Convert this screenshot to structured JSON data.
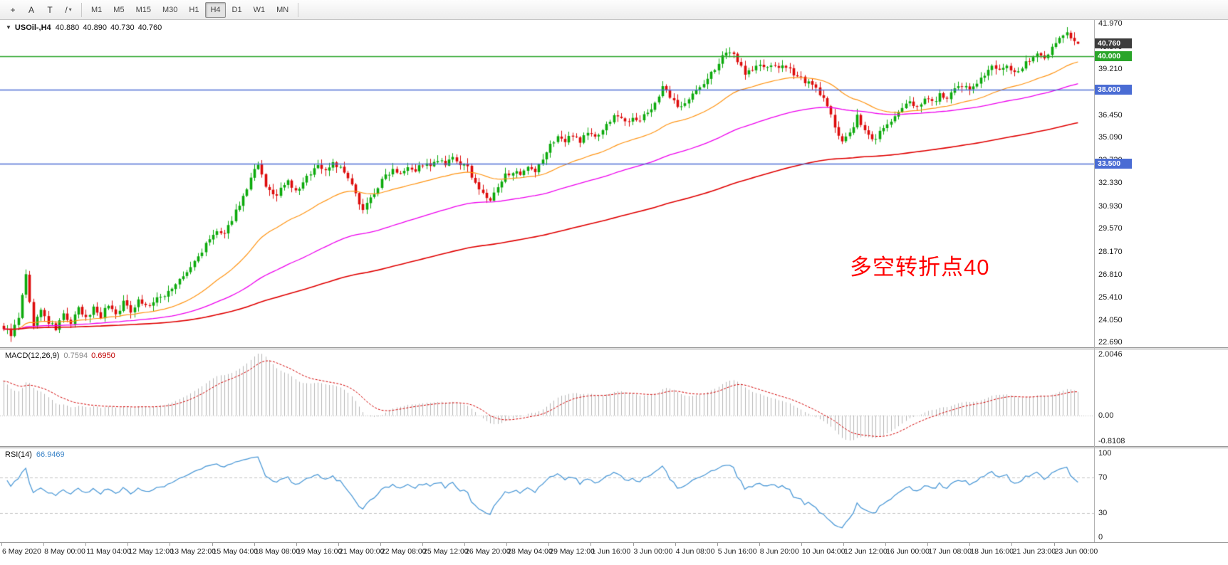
{
  "window": {
    "background": "#ffffff"
  },
  "toolbar": {
    "buttons": [
      {
        "name": "crosshair",
        "glyph": "+"
      },
      {
        "name": "text-annotation",
        "glyph": "A"
      },
      {
        "name": "text-box",
        "glyph": "T"
      },
      {
        "name": "draw-line",
        "glyph": "/",
        "caret": "▾"
      }
    ],
    "timeframes": [
      "M1",
      "M5",
      "M15",
      "M30",
      "H1",
      "H4",
      "D1",
      "W1",
      "MN"
    ],
    "active_timeframe": "H4"
  },
  "chart": {
    "title": {
      "dropdown_glyph": "▼",
      "symbol_tf": "USOil-,H4",
      "open": "40.880",
      "high": "40.890",
      "low": "40.730",
      "close": "40.760"
    },
    "annotation": {
      "text": "多空转折点40",
      "color": "#ff0000"
    }
  },
  "chart_data": {
    "type": "candlestick",
    "symbol": "USOil-",
    "timeframe": "H4",
    "bars": 288,
    "seed": 9,
    "noise": 0.17,
    "wick": 0.32,
    "y_range": [
      22.4,
      42.2
    ],
    "price_ticks": [
      41.97,
      40.57,
      39.21,
      37.85,
      36.45,
      35.09,
      33.73,
      32.33,
      30.93,
      29.57,
      28.17,
      26.81,
      25.41,
      24.05,
      22.69
    ],
    "last_bar": [
      40.88,
      40.89,
      40.73,
      40.76
    ],
    "current_price": {
      "value": 40.76,
      "label": "40.760",
      "color": "#3c3c3c"
    },
    "hlines": [
      {
        "value": 40.0,
        "color": "#2aa52a",
        "label": "40.000"
      },
      {
        "value": 38.0,
        "color": "#4a6cd4",
        "label": "38.000"
      },
      {
        "value": 33.5,
        "color": "#4a6cd4",
        "label": "33.500"
      }
    ],
    "up_color": "#0caa0c",
    "down_color": "#dd0b0b",
    "mas": [
      {
        "period": 34,
        "color": "#ff9412",
        "width": 1.2
      },
      {
        "period": 89,
        "color": "#ee00ee",
        "width": 1.3
      },
      {
        "period": 200,
        "color": "#e00000",
        "width": 1.6
      }
    ],
    "close_anchors": [
      [
        0,
        23.6
      ],
      [
        2,
        23.2
      ],
      [
        4,
        24.1
      ],
      [
        6,
        26.9
      ],
      [
        7,
        25.0
      ],
      [
        8,
        23.8
      ],
      [
        10,
        24.6
      ],
      [
        12,
        23.9
      ],
      [
        14,
        23.5
      ],
      [
        16,
        24.4
      ],
      [
        18,
        23.8
      ],
      [
        20,
        24.7
      ],
      [
        22,
        24.1
      ],
      [
        24,
        24.8
      ],
      [
        26,
        24.3
      ],
      [
        28,
        25.0
      ],
      [
        30,
        24.4
      ],
      [
        32,
        25.1
      ],
      [
        34,
        24.6
      ],
      [
        36,
        25.3
      ],
      [
        38,
        24.9
      ],
      [
        40,
        25.1
      ],
      [
        43,
        25.6
      ],
      [
        46,
        26.2
      ],
      [
        49,
        26.9
      ],
      [
        52,
        27.9
      ],
      [
        55,
        28.9
      ],
      [
        57,
        29.4
      ],
      [
        59,
        29.1
      ],
      [
        61,
        30.2
      ],
      [
        63,
        31.1
      ],
      [
        65,
        31.9
      ],
      [
        67,
        33.1
      ],
      [
        68,
        33.3
      ],
      [
        70,
        32.2
      ],
      [
        72,
        31.5
      ],
      [
        74,
        31.9
      ],
      [
        76,
        32.4
      ],
      [
        78,
        31.8
      ],
      [
        80,
        32.3
      ],
      [
        82,
        33.0
      ],
      [
        84,
        33.4
      ],
      [
        86,
        33.1
      ],
      [
        88,
        33.6
      ],
      [
        90,
        33.2
      ],
      [
        92,
        32.6
      ],
      [
        94,
        31.6
      ],
      [
        96,
        30.8
      ],
      [
        98,
        31.4
      ],
      [
        100,
        32.1
      ],
      [
        102,
        32.8
      ],
      [
        104,
        33.2
      ],
      [
        106,
        33.0
      ],
      [
        108,
        33.4
      ],
      [
        110,
        33.1
      ],
      [
        112,
        33.5
      ],
      [
        114,
        33.3
      ],
      [
        116,
        33.7
      ],
      [
        118,
        33.4
      ],
      [
        120,
        33.8
      ],
      [
        122,
        33.5
      ],
      [
        124,
        33.2
      ],
      [
        126,
        32.4
      ],
      [
        128,
        31.6
      ],
      [
        130,
        31.3
      ],
      [
        132,
        32.0
      ],
      [
        134,
        32.8
      ],
      [
        136,
        33.1
      ],
      [
        138,
        32.7
      ],
      [
        140,
        33.2
      ],
      [
        142,
        32.9
      ],
      [
        144,
        33.8
      ],
      [
        146,
        34.6
      ],
      [
        148,
        35.2
      ],
      [
        150,
        34.8
      ],
      [
        152,
        35.3
      ],
      [
        154,
        34.9
      ],
      [
        156,
        35.4
      ],
      [
        158,
        35.1
      ],
      [
        160,
        35.6
      ],
      [
        162,
        36.1
      ],
      [
        164,
        36.5
      ],
      [
        166,
        36.0
      ],
      [
        168,
        36.4
      ],
      [
        170,
        36.1
      ],
      [
        172,
        36.6
      ],
      [
        174,
        37.2
      ],
      [
        176,
        38.1
      ],
      [
        178,
        37.5
      ],
      [
        180,
        36.9
      ],
      [
        182,
        37.3
      ],
      [
        184,
        37.7
      ],
      [
        186,
        38.1
      ],
      [
        188,
        38.6
      ],
      [
        190,
        39.3
      ],
      [
        192,
        39.9
      ],
      [
        194,
        40.3
      ],
      [
        196,
        39.8
      ],
      [
        198,
        39.0
      ],
      [
        200,
        39.2
      ],
      [
        202,
        39.5
      ],
      [
        204,
        39.2
      ],
      [
        206,
        39.5
      ],
      [
        208,
        39.3
      ],
      [
        210,
        39.1
      ],
      [
        212,
        38.9
      ],
      [
        214,
        38.5
      ],
      [
        216,
        38.2
      ],
      [
        218,
        37.8
      ],
      [
        220,
        36.9
      ],
      [
        222,
        35.8
      ],
      [
        224,
        34.9
      ],
      [
        226,
        35.3
      ],
      [
        228,
        36.3
      ],
      [
        230,
        35.5
      ],
      [
        232,
        34.9
      ],
      [
        234,
        35.4
      ],
      [
        236,
        35.9
      ],
      [
        238,
        36.3
      ],
      [
        240,
        36.8
      ],
      [
        242,
        37.2
      ],
      [
        244,
        37.0
      ],
      [
        246,
        37.5
      ],
      [
        248,
        37.2
      ],
      [
        250,
        37.7
      ],
      [
        252,
        37.4
      ],
      [
        254,
        37.9
      ],
      [
        256,
        38.2
      ],
      [
        258,
        38.0
      ],
      [
        260,
        38.5
      ],
      [
        262,
        38.9
      ],
      [
        264,
        39.3
      ],
      [
        266,
        39.1
      ],
      [
        268,
        39.5
      ],
      [
        270,
        39.0
      ],
      [
        272,
        39.3
      ],
      [
        274,
        39.8
      ],
      [
        276,
        40.2
      ],
      [
        278,
        40.0
      ],
      [
        280,
        40.5
      ],
      [
        282,
        41.1
      ],
      [
        284,
        41.4
      ],
      [
        285,
        41.0
      ],
      [
        286,
        40.88
      ],
      [
        287,
        40.76
      ]
    ],
    "macd": {
      "label": "MACD(12,26,9)",
      "value_main": "0.7594",
      "value_signal": "0.6950",
      "fast": 12,
      "slow": 26,
      "signal": 9,
      "seed_offsets": [
        0.45,
        -0.65
      ],
      "axis_max": "2.0046",
      "axis_zero": "0.00",
      "axis_min": "-0.8108",
      "hist_color": "#b6b6b6",
      "signal_color": "#d40000"
    },
    "rsi": {
      "label": "RSI(14)",
      "value": "66.9469",
      "period": 14,
      "levels": [
        70,
        30
      ],
      "axis_labels": [
        "100",
        "70",
        "30",
        "0"
      ],
      "line_color": "#4f9bd8",
      "level_color": "#c4c4c4"
    },
    "x_labels": [
      "6 May 2020",
      "8 May 00:00",
      "11 May 04:00",
      "12 May 12:00",
      "13 May 22:00",
      "15 May 04:00",
      "18 May 08:00",
      "19 May 16:00",
      "21 May 00:00",
      "22 May 08:00",
      "25 May 12:00",
      "26 May 20:00",
      "28 May 04:00",
      "29 May 12:00",
      "1 Jun 16:00",
      "3 Jun 00:00",
      "4 Jun 08:00",
      "5 Jun 16:00",
      "8 Jun 20:00",
      "10 Jun 04:00",
      "12 Jun 12:00",
      "16 Jun 00:00",
      "17 Jun 08:00",
      "18 Jun 16:00",
      "21 Jun 23:00",
      "23 Jun 00:00"
    ]
  }
}
